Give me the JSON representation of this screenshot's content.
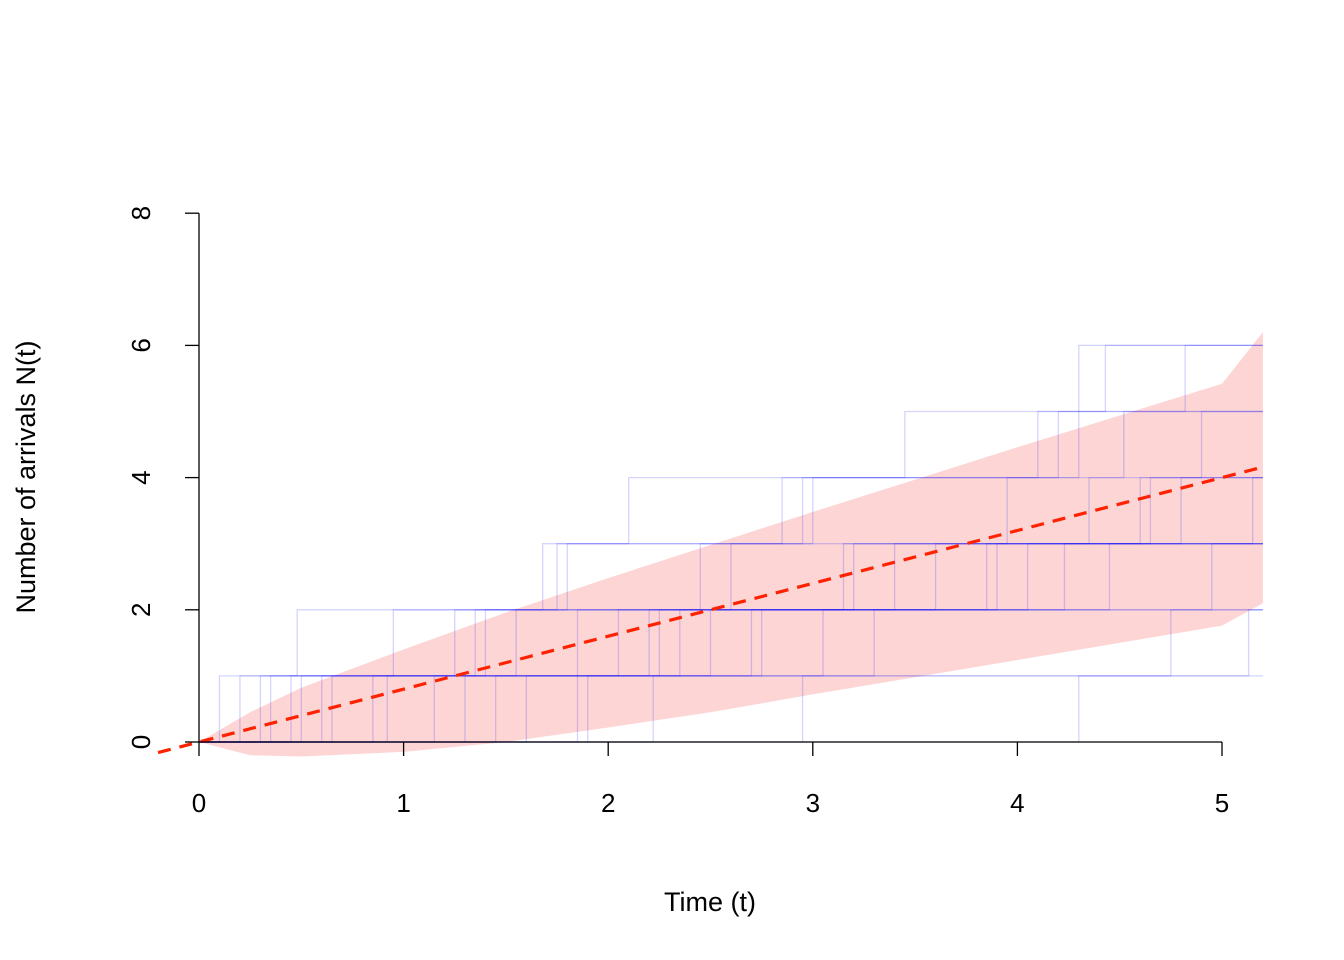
{
  "chart_data": {
    "type": "line",
    "title": "",
    "xlabel": "Time (t)",
    "ylabel": "Number of arrivals N(t)",
    "xlim": [
      -0.2,
      5.2
    ],
    "ylim": [
      0,
      8
    ],
    "x_ticks": [
      "0",
      "1",
      "2",
      "3",
      "4",
      "5"
    ],
    "y_ticks": [
      "0",
      "2",
      "4",
      "6",
      "8"
    ],
    "grid": false,
    "rate": 0.8,
    "mean_line": {
      "color": "#ff2200",
      "style": "dashed",
      "slope": 0.8,
      "x_range": [
        -0.2,
        5.2
      ]
    },
    "band": {
      "color": "#fdd5d5",
      "x": [
        0,
        0.25,
        0.5,
        1,
        1.5,
        2,
        2.5,
        3,
        3.5,
        4,
        4.5,
        5,
        5.2
      ],
      "upper": [
        0,
        0.45,
        0.82,
        1.4,
        1.96,
        2.48,
        2.98,
        3.48,
        3.97,
        4.46,
        4.94,
        5.42,
        6.2
      ],
      "lower": [
        0,
        -0.2,
        -0.22,
        -0.15,
        0.0,
        0.22,
        0.45,
        0.72,
        0.98,
        1.24,
        1.5,
        1.76,
        2.1
      ]
    },
    "series_color": "#0000ff",
    "series": [
      {
        "values": [
          0.1,
          0.48,
          1.75,
          2.1,
          3.45,
          4.3
        ]
      },
      {
        "values": [
          0.2,
          0.95,
          1.68,
          2.95,
          4.3,
          4.43
        ]
      },
      {
        "values": [
          0.3,
          1.25,
          1.8,
          3.0,
          4.1,
          4.82
        ]
      },
      {
        "values": [
          0.35,
          1.35,
          2.6,
          3.95,
          4.52
        ]
      },
      {
        "values": [
          0.5,
          1.55,
          2.45,
          2.85,
          4.2
        ]
      },
      {
        "values": [
          0.6,
          1.85,
          3.2,
          4.8
        ]
      },
      {
        "values": [
          0.65,
          2.2,
          3.6,
          4.65
        ]
      },
      {
        "values": [
          0.85,
          2.35,
          3.85,
          5.15
        ]
      },
      {
        "values": [
          1.15,
          2.5,
          3.9
        ]
      },
      {
        "values": [
          1.3,
          2.75,
          4.05
        ]
      },
      {
        "values": [
          1.45,
          2.25,
          4.45
        ]
      },
      {
        "values": [
          1.6,
          2.7,
          4.23
        ]
      },
      {
        "values": [
          1.85,
          3.3,
          4.95
        ]
      },
      {
        "values": [
          1.9,
          3.05
        ]
      },
      {
        "values": [
          2.22,
          4.75
        ]
      },
      {
        "values": [
          2.95,
          5.13
        ]
      },
      {
        "values": [
          0.92,
          1.4,
          3.15,
          4.6
        ]
      },
      {
        "values": [
          0.45,
          2.05,
          3.4,
          4.35,
          4.9
        ]
      },
      {
        "values": [
          4.3
        ]
      }
    ]
  }
}
